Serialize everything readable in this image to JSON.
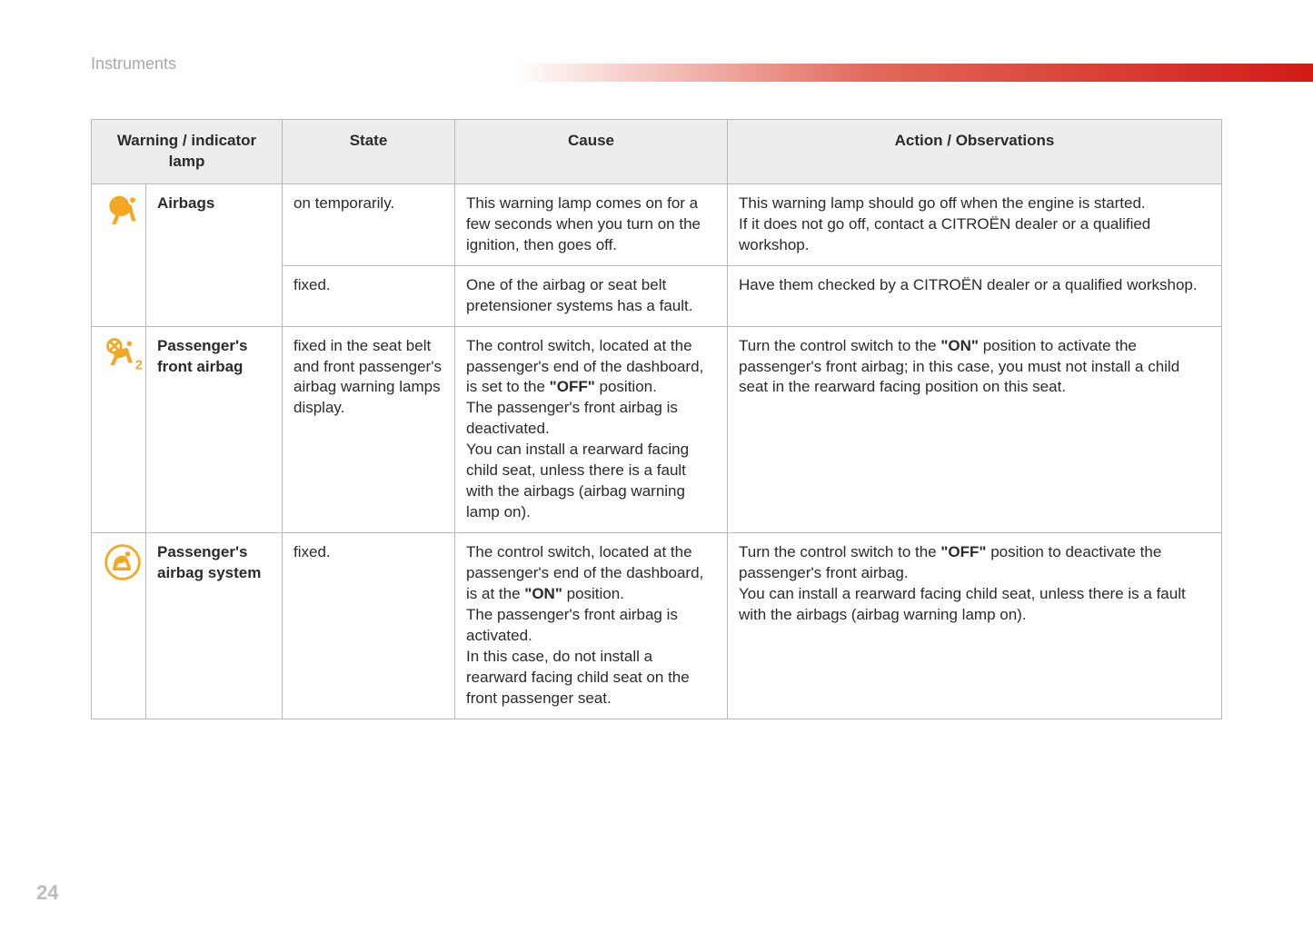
{
  "section_title": "Instruments",
  "page_number": "24",
  "icon_color": "#f5a623",
  "table": {
    "headers": {
      "lamp": "Warning / indicator lamp",
      "state": "State",
      "cause": "Cause",
      "action": "Action / Observations"
    },
    "rows": [
      {
        "icon": "airbag",
        "name": "Airbags",
        "states": [
          {
            "state": "on temporarily.",
            "cause": "This warning lamp comes on for a few seconds when you turn on the ignition, then goes off.",
            "action": "This warning lamp should go off when the engine is started.\nIf it does not go off, contact a CITROËN dealer or a qualified workshop."
          },
          {
            "state": "fixed.",
            "cause": "One of the airbag or seat belt pretensioner systems has a fault.",
            "action": "Have them checked by a CITROËN dealer or a qualified workshop."
          }
        ]
      },
      {
        "icon": "airbag-off",
        "name": "Passenger's front airbag",
        "states": [
          {
            "state": "fixed in the seat belt and front passenger's airbag warning lamps display.",
            "cause_pre": "The control switch, located at the passenger's end of the dashboard, is set to the ",
            "cause_bold": "\"OFF\"",
            "cause_post": " position.\nThe passenger's front airbag is deactivated.\nYou can install a rearward facing child seat, unless there is a fault with the airbags (airbag warning lamp on).",
            "action_pre": "Turn the control switch to the ",
            "action_bold": "\"ON\"",
            "action_post": " position to activate the passenger's front airbag; in this case, you must not install a child seat in the rearward facing position on this seat."
          }
        ]
      },
      {
        "icon": "airbag-on",
        "name": "Passenger's airbag system",
        "states": [
          {
            "state": "fixed.",
            "cause_pre": "The control switch, located at the passenger's end of the dashboard, is at the ",
            "cause_bold": "\"ON\"",
            "cause_post": " position.\nThe passenger's front airbag is activated.\nIn this case, do not install a rearward facing child seat on the front passenger seat.",
            "action_pre": "Turn the control switch to the ",
            "action_bold": "\"OFF\"",
            "action_post": " position to deactivate the passenger's front airbag.\nYou can install a rearward facing child seat, unless there is a fault with the airbags (airbag warning lamp on)."
          }
        ]
      }
    ]
  }
}
